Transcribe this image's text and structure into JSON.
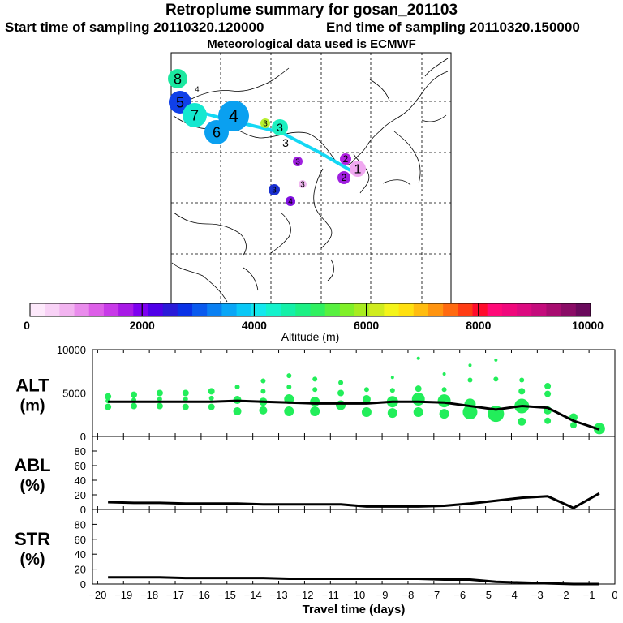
{
  "header": {
    "title": "Retroplume summary for gosan_201103",
    "start": "Start time of sampling 20110320.120000",
    "end": "End time of sampling 20110320.150000",
    "met": "Meteorological data used is ECMWF"
  },
  "colorbar": {
    "label": "Altitude (m)",
    "tick_labels": [
      "0",
      "2000",
      "4000",
      "6000",
      "8000",
      "10000"
    ],
    "colors": [
      "#fde9fb",
      "#f8d2f6",
      "#f2b4f0",
      "#e98cec",
      "#dd5fe8",
      "#c83ae8",
      "#a81ae6",
      "#7d00f0",
      "#4f00e8",
      "#2a1ad8",
      "#0a32e6",
      "#0a5aee",
      "#0a80f2",
      "#0aa6f6",
      "#0ac8f6",
      "#14e8ee",
      "#14f2cc",
      "#14f0a8",
      "#1cf084",
      "#30f060",
      "#58f040",
      "#80f028",
      "#a8ec20",
      "#d0ec1e",
      "#f4f41a",
      "#ffe010",
      "#ffbc10",
      "#ff9410",
      "#ff6a10",
      "#ff3c14",
      "#ff0c2c",
      "#ff0a78",
      "#f0087c",
      "#dc0a80",
      "#c40c7c",
      "#a80c70",
      "#8a0c66",
      "#6a0a5c"
    ]
  },
  "map": {
    "labels": [
      {
        "text": "8",
        "color": "#1ce8a0"
      },
      {
        "text": "4",
        "color": "#ffffff"
      },
      {
        "text": "5",
        "color": "#1040e8"
      },
      {
        "text": "7",
        "color": "#14e8d0"
      },
      {
        "text": "4",
        "color": "#0aa0f0"
      },
      {
        "text": "6",
        "color": "#0aa0f0"
      },
      {
        "text": "3",
        "color": "#b8f030"
      },
      {
        "text": "3",
        "color": "#1cf0c0"
      },
      {
        "text": "3",
        "color": "#ffffff"
      },
      {
        "text": "2",
        "color": "#b020e0"
      },
      {
        "text": "1",
        "color": "#f0a8f0"
      },
      {
        "text": "3",
        "color": "#a020e0"
      },
      {
        "text": "2",
        "color": "#a020e0"
      },
      {
        "text": "3",
        "color": "#f0b8f0"
      },
      {
        "text": "3",
        "color": "#1a30d0"
      },
      {
        "text": "4",
        "color": "#8010e0"
      }
    ]
  },
  "panels": {
    "alt": {
      "label1": "ALT",
      "label2": "(m)"
    },
    "abl": {
      "label1": "ABL",
      "label2": "(%)"
    },
    "str": {
      "label1": "STR",
      "label2": "(%)"
    }
  },
  "chart_data": [
    {
      "type": "line",
      "title": "ALT",
      "xlabel": "Travel time (days)",
      "ylabel": "ALT (m)",
      "xlim": [
        -20.2,
        0
      ],
      "ylim": [
        0,
        10000
      ],
      "yticks": [
        0,
        5000,
        10000
      ],
      "x": [
        -19.6,
        -18.6,
        -17.6,
        -16.6,
        -15.6,
        -14.6,
        -13.6,
        -12.6,
        -11.6,
        -10.6,
        -9.6,
        -8.6,
        -7.6,
        -6.6,
        -5.6,
        -4.6,
        -3.6,
        -2.6,
        -1.6,
        -0.6
      ],
      "series": [
        {
          "name": "mean altitude",
          "values": [
            4000,
            4000,
            4000,
            4000,
            4000,
            4100,
            4000,
            3900,
            3800,
            3800,
            3800,
            4000,
            4000,
            3900,
            3500,
            3100,
            3500,
            3300,
            1800,
            800
          ]
        }
      ],
      "clusters": [
        {
          "x": -19.6,
          "y": [
            4600,
            4100,
            3400
          ],
          "r": [
            4,
            3,
            4
          ]
        },
        {
          "x": -18.6,
          "y": [
            4800,
            4200,
            3500
          ],
          "r": [
            4,
            3,
            4
          ]
        },
        {
          "x": -17.6,
          "y": [
            5000,
            4300,
            3500
          ],
          "r": [
            4,
            3,
            4
          ]
        },
        {
          "x": -16.6,
          "y": [
            5000,
            4300,
            3400
          ],
          "r": [
            4,
            3,
            4
          ]
        },
        {
          "x": -15.6,
          "y": [
            5200,
            4400,
            3400
          ],
          "r": [
            4,
            3,
            4
          ]
        },
        {
          "x": -14.6,
          "y": [
            5700,
            4200,
            2900
          ],
          "r": [
            3,
            5,
            5
          ]
        },
        {
          "x": -13.6,
          "y": [
            6400,
            5200,
            4000,
            3000
          ],
          "r": [
            3,
            3,
            5,
            5
          ]
        },
        {
          "x": -12.6,
          "y": [
            7000,
            5700,
            4300,
            2900
          ],
          "r": [
            3,
            3,
            6,
            6
          ]
        },
        {
          "x": -11.6,
          "y": [
            6600,
            5400,
            4000,
            2900
          ],
          "r": [
            3,
            3,
            6,
            6
          ]
        },
        {
          "x": -10.6,
          "y": [
            6200,
            5000,
            3600
          ],
          "r": [
            3,
            4,
            6
          ]
        },
        {
          "x": -9.6,
          "y": [
            5400,
            4300,
            2800
          ],
          "r": [
            3,
            5,
            6
          ]
        },
        {
          "x": -8.6,
          "y": [
            6800,
            5300,
            4000,
            2700
          ],
          "r": [
            2,
            3,
            7,
            6
          ]
        },
        {
          "x": -7.6,
          "y": [
            9000,
            5500,
            4300,
            2800
          ],
          "r": [
            2,
            4,
            8,
            6
          ]
        },
        {
          "x": -6.6,
          "y": [
            7200,
            5400,
            4100,
            2600
          ],
          "r": [
            2,
            3,
            8,
            6
          ]
        },
        {
          "x": -5.6,
          "y": [
            8200,
            6500,
            3700,
            2800
          ],
          "r": [
            2,
            3,
            7,
            9
          ]
        },
        {
          "x": -4.6,
          "y": [
            8800,
            6600,
            2600
          ],
          "r": [
            2,
            3,
            10
          ]
        },
        {
          "x": -3.6,
          "y": [
            6500,
            5200,
            3500,
            1700
          ],
          "r": [
            3,
            4,
            9,
            5
          ]
        },
        {
          "x": -2.6,
          "y": [
            5800,
            4900,
            3000,
            1800
          ],
          "r": [
            4,
            4,
            5,
            4
          ]
        },
        {
          "x": -1.6,
          "y": [
            2200,
            1300
          ],
          "r": [
            5,
            4
          ]
        },
        {
          "x": -0.6,
          "y": [
            900
          ],
          "r": [
            7
          ]
        }
      ]
    },
    {
      "type": "line",
      "title": "ABL",
      "xlabel": "Travel time (days)",
      "ylabel": "ABL (%)",
      "xlim": [
        -20.2,
        0
      ],
      "ylim": [
        0,
        100
      ],
      "yticks": [
        0,
        20,
        40,
        60,
        80
      ],
      "x": [
        -19.6,
        -18.6,
        -17.6,
        -16.6,
        -15.6,
        -14.6,
        -13.6,
        -12.6,
        -11.6,
        -10.6,
        -9.6,
        -8.6,
        -7.6,
        -6.6,
        -5.6,
        -4.6,
        -3.6,
        -2.6,
        -1.6,
        -0.6
      ],
      "series": [
        {
          "name": "ABL",
          "values": [
            10,
            9,
            9,
            8,
            8,
            8,
            7,
            7,
            7,
            7,
            4,
            4,
            4,
            5,
            8,
            12,
            16,
            18,
            2,
            22
          ]
        }
      ]
    },
    {
      "type": "line",
      "title": "STR",
      "xlabel": "Travel time (days)",
      "ylabel": "STR (%)",
      "xlim": [
        -20.2,
        0
      ],
      "ylim": [
        0,
        100
      ],
      "yticks": [
        0,
        20,
        40,
        60,
        80
      ],
      "xticks": [
        -20,
        -19,
        -18,
        -17,
        -16,
        -15,
        -14,
        -13,
        -12,
        -11,
        -10,
        -9,
        -8,
        -7,
        -6,
        -5,
        -4,
        -3,
        -2,
        -1,
        0
      ],
      "xtick_labels": [
        "−20",
        "−19",
        "−18",
        "−17",
        "−16",
        "−15",
        "−14",
        "−13",
        "−12",
        "−11",
        "−10",
        "−9",
        "−8",
        "−7",
        "−6",
        "−5",
        "−4",
        "−3",
        "−2",
        "−1",
        "0"
      ],
      "x": [
        -19.6,
        -18.6,
        -17.6,
        -16.6,
        -15.6,
        -14.6,
        -13.6,
        -12.6,
        -11.6,
        -10.6,
        -9.6,
        -8.6,
        -7.6,
        -6.6,
        -5.6,
        -4.6,
        -3.6,
        -2.6,
        -1.6,
        -0.6
      ],
      "series": [
        {
          "name": "STR",
          "values": [
            9,
            9,
            9,
            8,
            8,
            8,
            8,
            7,
            7,
            7,
            7,
            7,
            7,
            6,
            6,
            3,
            2,
            1,
            0,
            0
          ]
        }
      ]
    }
  ]
}
